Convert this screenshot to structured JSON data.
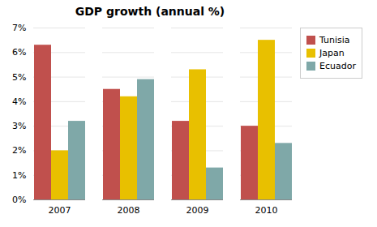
{
  "chart_data": {
    "type": "bar",
    "title": "GDP growth (annual %)",
    "categories": [
      "2007",
      "2008",
      "2009",
      "2010"
    ],
    "series": [
      {
        "name": "Tunisia",
        "color": "#C0504D",
        "values": [
          6.3,
          4.5,
          3.2,
          3.0
        ]
      },
      {
        "name": "Japan",
        "color": "#E8C000",
        "values": [
          2.0,
          4.2,
          5.3,
          6.5
        ]
      },
      {
        "name": "Ecuador",
        "color": "#7FA8A8",
        "values": [
          3.2,
          4.9,
          1.3,
          2.3
        ]
      }
    ],
    "ylim": [
      0,
      7
    ],
    "yticks": [
      {
        "value": 0,
        "label": "0%"
      },
      {
        "value": 1,
        "label": "1%"
      },
      {
        "value": 2,
        "label": "2%"
      },
      {
        "value": 3,
        "label": "3%"
      },
      {
        "value": 4,
        "label": "4%"
      },
      {
        "value": 5,
        "label": "5%"
      },
      {
        "value": 6,
        "label": "6%"
      },
      {
        "value": 7,
        "label": "7%"
      }
    ],
    "grid": true,
    "legend": "upper right"
  }
}
